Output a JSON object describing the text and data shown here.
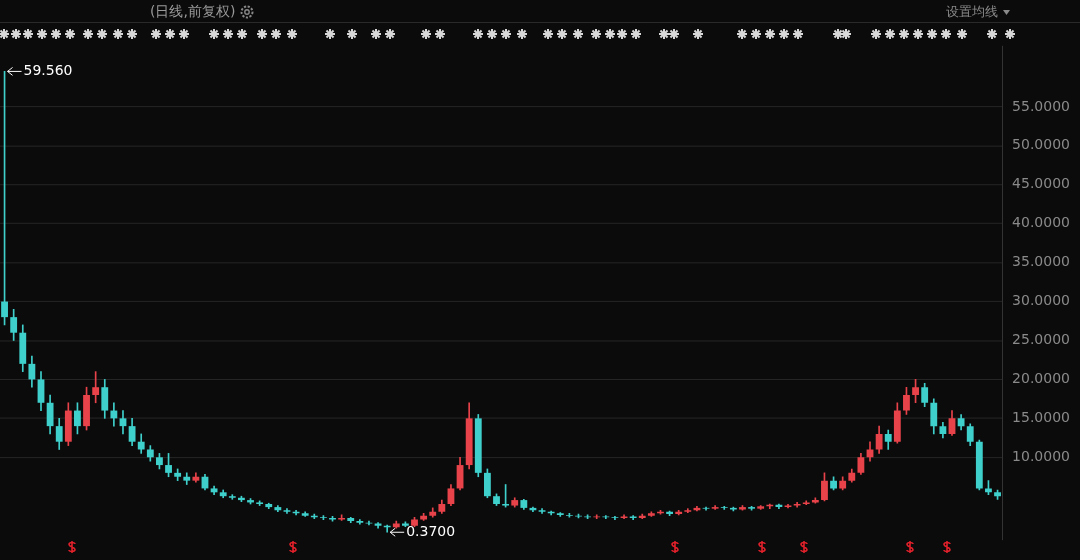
{
  "chart_data": {
    "type": "candlestick",
    "subtitle": "(日线,前复权)",
    "annotations": [
      "设置均线",
      "59.560",
      "0.3700"
    ],
    "categories": [
      null,
      null,
      null,
      null,
      null,
      null,
      null,
      null,
      null,
      null,
      null,
      null,
      null,
      null,
      null,
      null,
      null,
      null,
      null,
      null,
      null,
      null,
      null,
      null,
      null,
      null,
      null,
      null,
      null,
      null,
      null,
      null,
      null,
      null,
      null,
      null,
      null,
      null,
      null,
      null,
      null,
      null,
      null,
      null,
      null,
      null,
      null,
      null,
      null,
      null,
      null,
      null,
      null,
      null,
      null,
      null,
      null,
      null,
      null,
      null,
      null,
      null,
      null,
      null,
      null,
      null,
      null,
      null,
      null,
      null,
      null,
      null,
      null,
      null,
      null,
      null,
      null,
      null,
      null,
      null,
      null,
      null,
      null,
      null,
      null,
      null,
      null,
      null,
      null,
      null,
      null,
      null,
      null,
      null,
      null,
      null,
      null,
      null,
      null,
      null,
      null,
      null,
      null,
      null,
      null,
      null,
      null,
      null,
      null,
      null
    ],
    "ohlc": [
      [
        30,
        59.56,
        27,
        28
      ],
      [
        28,
        29,
        25,
        26
      ],
      [
        26,
        27,
        21,
        22
      ],
      [
        22,
        23,
        19,
        20
      ],
      [
        20,
        21,
        16,
        17
      ],
      [
        17,
        18,
        13,
        14
      ],
      [
        14,
        15,
        11,
        12
      ],
      [
        12,
        17,
        11.5,
        16
      ],
      [
        16,
        17,
        13,
        14
      ],
      [
        14,
        19,
        13.5,
        18
      ],
      [
        18,
        21,
        17,
        19
      ],
      [
        19,
        20,
        15,
        16
      ],
      [
        16,
        17,
        14,
        15
      ],
      [
        15,
        16,
        13,
        14
      ],
      [
        14,
        15,
        11.5,
        12
      ],
      [
        12,
        13,
        10.5,
        11
      ],
      [
        11,
        11.5,
        9.5,
        10
      ],
      [
        10,
        10.5,
        8.5,
        9
      ],
      [
        9,
        10.5,
        7.5,
        8
      ],
      [
        8,
        8.5,
        7,
        7.5
      ],
      [
        7.5,
        8,
        6.5,
        7
      ],
      [
        7,
        8,
        6.8,
        7.5
      ],
      [
        7.5,
        7.8,
        5.8,
        6
      ],
      [
        6,
        6.3,
        5.2,
        5.5
      ],
      [
        5.5,
        5.8,
        4.8,
        5
      ],
      [
        5,
        5.2,
        4.6,
        4.8
      ],
      [
        4.8,
        5,
        4.3,
        4.5
      ],
      [
        4.5,
        4.7,
        4,
        4.2
      ],
      [
        4.2,
        4.4,
        3.8,
        4
      ],
      [
        4,
        4.1,
        3.4,
        3.6
      ],
      [
        3.6,
        3.8,
        3,
        3.2
      ],
      [
        3.2,
        3.4,
        2.8,
        3
      ],
      [
        3,
        3.2,
        2.6,
        2.8
      ],
      [
        2.8,
        3,
        2.4,
        2.5
      ],
      [
        2.5,
        2.7,
        2.1,
        2.3
      ],
      [
        2.3,
        2.5,
        2,
        2.2
      ],
      [
        2.2,
        2.4,
        1.8,
        2
      ],
      [
        2,
        2.6,
        1.9,
        2.2
      ],
      [
        2.2,
        2.3,
        1.6,
        1.8
      ],
      [
        1.8,
        2,
        1.4,
        1.6
      ],
      [
        1.6,
        1.8,
        1.3,
        1.5
      ],
      [
        1.5,
        1.6,
        0.9,
        1.2
      ],
      [
        1.2,
        1.3,
        0.37,
        1
      ],
      [
        1,
        1.8,
        0.9,
        1.5
      ],
      [
        1.5,
        1.7,
        1.1,
        1.2
      ],
      [
        1.2,
        2.3,
        1.1,
        2
      ],
      [
        2,
        2.8,
        1.9,
        2.5
      ],
      [
        2.5,
        3.5,
        2.3,
        3
      ],
      [
        3,
        4.5,
        2.8,
        4
      ],
      [
        4,
        6.5,
        3.8,
        6
      ],
      [
        6,
        10,
        5.8,
        9
      ],
      [
        9,
        17,
        8.5,
        15
      ],
      [
        15,
        15.5,
        7.5,
        8
      ],
      [
        8,
        8.5,
        4.8,
        5
      ],
      [
        5,
        5.3,
        3.8,
        4
      ],
      [
        4,
        6.5,
        3.6,
        3.8
      ],
      [
        3.8,
        4.8,
        3.6,
        4.5
      ],
      [
        4.5,
        4.6,
        3.3,
        3.5
      ],
      [
        3.5,
        3.6,
        3,
        3.2
      ],
      [
        3.2,
        3.4,
        2.8,
        3
      ],
      [
        3,
        3.1,
        2.6,
        2.8
      ],
      [
        2.8,
        2.9,
        2.4,
        2.6
      ],
      [
        2.6,
        2.8,
        2.3,
        2.5
      ],
      [
        2.5,
        2.7,
        2.2,
        2.4
      ],
      [
        2.4,
        2.6,
        2.1,
        2.3
      ],
      [
        2.3,
        2.6,
        2.1,
        2.4
      ],
      [
        2.4,
        2.5,
        2.1,
        2.3
      ],
      [
        2.3,
        2.4,
        2,
        2.2
      ],
      [
        2.2,
        2.6,
        2.1,
        2.4
      ],
      [
        2.4,
        2.5,
        2,
        2.2
      ],
      [
        2.2,
        2.7,
        2.1,
        2.5
      ],
      [
        2.5,
        3,
        2.4,
        2.8
      ],
      [
        2.8,
        3.2,
        2.7,
        3
      ],
      [
        3,
        3.1,
        2.5,
        2.7
      ],
      [
        2.7,
        3.2,
        2.6,
        3
      ],
      [
        3,
        3.4,
        2.9,
        3.2
      ],
      [
        3.2,
        3.7,
        3.1,
        3.5
      ],
      [
        3.5,
        3.6,
        3.2,
        3.4
      ],
      [
        3.4,
        3.8,
        3.3,
        3.6
      ],
      [
        3.6,
        3.7,
        3.3,
        3.5
      ],
      [
        3.5,
        3.6,
        3.1,
        3.3
      ],
      [
        3.3,
        3.8,
        3.2,
        3.6
      ],
      [
        3.6,
        3.7,
        3.2,
        3.4
      ],
      [
        3.4,
        3.8,
        3.3,
        3.7
      ],
      [
        3.7,
        4,
        3.4,
        3.9
      ],
      [
        3.9,
        4,
        3.4,
        3.6
      ],
      [
        3.6,
        3.95,
        3.5,
        3.8
      ],
      [
        3.8,
        4.2,
        3.6,
        4
      ],
      [
        4,
        4.4,
        3.9,
        4.2
      ],
      [
        4.2,
        4.8,
        4.1,
        4.5
      ],
      [
        4.5,
        8,
        4.4,
        7
      ],
      [
        7,
        7.5,
        5.8,
        6
      ],
      [
        6,
        7.5,
        5.8,
        7
      ],
      [
        7,
        8.5,
        6.8,
        8
      ],
      [
        8,
        10.5,
        7.8,
        10
      ],
      [
        10,
        12,
        9.5,
        11
      ],
      [
        11,
        14,
        10.5,
        13
      ],
      [
        13,
        13.5,
        11,
        12
      ],
      [
        12,
        17,
        11.8,
        16
      ],
      [
        16,
        19,
        15.5,
        18
      ],
      [
        18,
        20,
        17,
        19
      ],
      [
        19,
        19.5,
        16.5,
        17
      ],
      [
        17,
        17.5,
        13,
        14
      ],
      [
        14,
        14.5,
        12.5,
        13
      ],
      [
        13,
        16,
        12.8,
        15
      ],
      [
        15,
        15.5,
        13.5,
        14
      ],
      [
        14,
        14.3,
        11.5,
        12
      ],
      [
        12,
        12.2,
        5.8,
        6
      ],
      [
        6,
        7,
        5.2,
        5.5
      ],
      [
        5.5,
        5.8,
        4.6,
        5
      ]
    ],
    "colors": [
      "#3fd0cc",
      "#3fd0cc",
      "#3fd0cc",
      "#3fd0cc",
      "#3fd0cc",
      "#3fd0cc",
      "#3fd0cc",
      "#e8434a",
      "#3fd0cc",
      "#e8434a",
      "#e8434a",
      "#3fd0cc",
      "#3fd0cc",
      "#3fd0cc",
      "#3fd0cc",
      "#3fd0cc",
      "#3fd0cc",
      "#3fd0cc",
      "#3fd0cc",
      "#3fd0cc",
      "#3fd0cc",
      "#e8434a",
      "#3fd0cc",
      "#3fd0cc",
      "#3fd0cc",
      "#3fd0cc",
      "#3fd0cc",
      "#3fd0cc",
      "#3fd0cc",
      "#3fd0cc",
      "#3fd0cc",
      "#3fd0cc",
      "#3fd0cc",
      "#3fd0cc",
      "#3fd0cc",
      "#3fd0cc",
      "#3fd0cc",
      "#e8434a",
      "#3fd0cc",
      "#3fd0cc",
      "#3fd0cc",
      "#3fd0cc",
      "#3fd0cc",
      "#e8434a",
      "#3fd0cc",
      "#e8434a",
      "#e8434a",
      "#e8434a",
      "#e8434a",
      "#e8434a",
      "#e8434a",
      "#e8434a",
      "#3fd0cc",
      "#3fd0cc",
      "#3fd0cc",
      "#3fd0cc",
      "#e8434a",
      "#3fd0cc",
      "#3fd0cc",
      "#3fd0cc",
      "#3fd0cc",
      "#3fd0cc",
      "#3fd0cc",
      "#3fd0cc",
      "#3fd0cc",
      "#e8434a",
      "#3fd0cc",
      "#3fd0cc",
      "#e8434a",
      "#3fd0cc",
      "#e8434a",
      "#e8434a",
      "#e8434a",
      "#3fd0cc",
      "#e8434a",
      "#e8434a",
      "#e8434a",
      "#3fd0cc",
      "#e8434a",
      "#3fd0cc",
      "#3fd0cc",
      "#e8434a",
      "#3fd0cc",
      "#e8434a",
      "#e8434a",
      "#3fd0cc",
      "#e8434a",
      "#e8434a",
      "#e8434a",
      "#e8434a",
      "#e8434a",
      "#3fd0cc",
      "#e8434a",
      "#e8434a",
      "#e8434a",
      "#e8434a",
      "#e8434a",
      "#3fd0cc",
      "#e8434a",
      "#e8434a",
      "#e8434a",
      "#3fd0cc",
      "#3fd0cc",
      "#3fd0cc",
      "#e8434a",
      "#3fd0cc",
      "#3fd0cc",
      "#3fd0cc",
      "#3fd0cc",
      "#3fd0cc"
    ],
    "ylim": [
      -0.6,
      62.8
    ],
    "yticks": [
      {
        "value": 10,
        "label": "10.0000"
      },
      {
        "value": 15,
        "label": "15.0000"
      },
      {
        "value": 20,
        "label": "20.0000"
      },
      {
        "value": 25,
        "label": "25.0000"
      },
      {
        "value": 30,
        "label": "30.0000"
      },
      {
        "value": 35,
        "label": "35.0000"
      },
      {
        "value": 40,
        "label": "40.0000"
      },
      {
        "value": 45,
        "label": "45.0000"
      },
      {
        "value": 50,
        "label": "50.0000"
      },
      {
        "value": 55,
        "label": "55.0000"
      }
    ],
    "grid": "y",
    "legend": false,
    "tick_labels": "y"
  }
}
